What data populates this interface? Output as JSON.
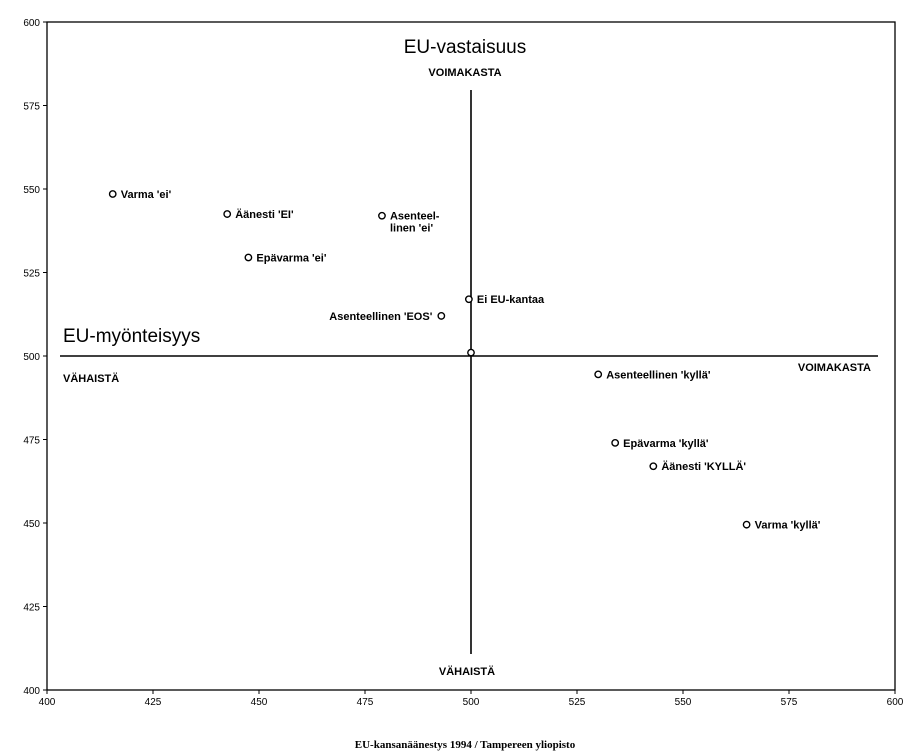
{
  "chart_data": {
    "type": "scatter",
    "xlim": [
      400,
      600
    ],
    "ylim": [
      400,
      600
    ],
    "x_ticks": [
      400,
      425,
      450,
      475,
      500,
      525,
      550,
      575,
      600
    ],
    "y_ticks": [
      400,
      425,
      450,
      475,
      500,
      525,
      550,
      575,
      600
    ],
    "grid": false,
    "center": {
      "x": 500,
      "y": 500
    },
    "vertical_axis": {
      "title": "EU-vastaisuus",
      "top_label": "VOIMAKASTA",
      "bottom_label": "VÄHAISTÄ"
    },
    "horizontal_axis": {
      "title": "EU-myönteisyys",
      "left_label": "VÄHAISTÄ",
      "right_label": "VOIMAKASTA"
    },
    "points": [
      {
        "x": 415.5,
        "y": 548.5,
        "label": [
          "Varma 'ei'"
        ],
        "pos": "right"
      },
      {
        "x": 442.5,
        "y": 542.5,
        "label": [
          "Äänesti 'EI'"
        ],
        "pos": "right"
      },
      {
        "x": 479,
        "y": 542,
        "label": [
          "Asenteel-",
          "linen 'ei'"
        ],
        "pos": "right"
      },
      {
        "x": 447.5,
        "y": 529.5,
        "label": [
          "Epävarma 'ei'"
        ],
        "pos": "right"
      },
      {
        "x": 499.5,
        "y": 517,
        "label": [
          "Ei EU-kantaa"
        ],
        "pos": "right"
      },
      {
        "x": 493,
        "y": 512,
        "label": [
          "Asenteellinen 'EOS'"
        ],
        "pos": "left"
      },
      {
        "x": 500,
        "y": 501,
        "label": [],
        "pos": "right"
      },
      {
        "x": 530,
        "y": 494.5,
        "label": [
          "Asenteellinen 'kyllä'"
        ],
        "pos": "right"
      },
      {
        "x": 534,
        "y": 474,
        "label": [
          "Epävarma 'kyllä'"
        ],
        "pos": "right"
      },
      {
        "x": 543,
        "y": 467,
        "label": [
          "Äänesti 'KYLLÄ'"
        ],
        "pos": "right"
      },
      {
        "x": 565,
        "y": 449.5,
        "label": [
          "Varma 'kyllä'"
        ],
        "pos": "right"
      }
    ],
    "caption": "EU-kansanäänestys 1994 / Tampereen yliopisto"
  }
}
